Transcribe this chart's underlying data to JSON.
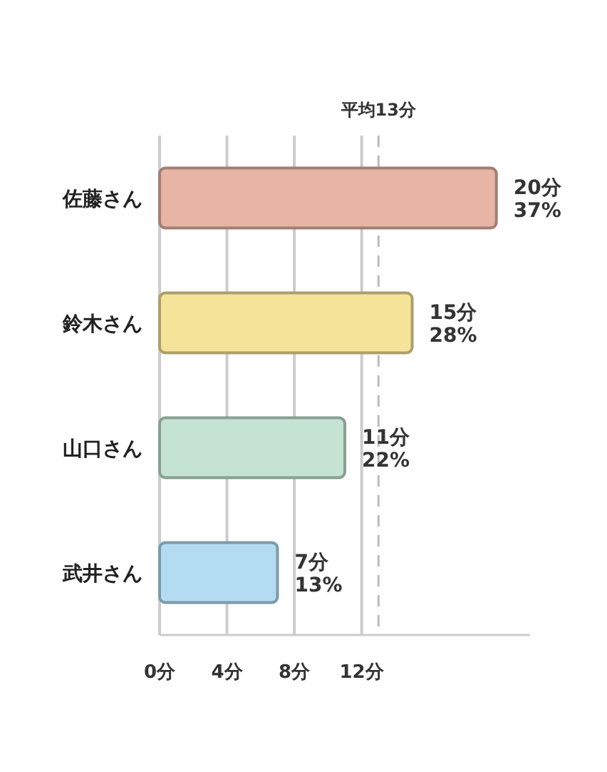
{
  "chart_data": {
    "type": "bar",
    "orientation": "horizontal",
    "categories": [
      "佐藤さん",
      "鈴木さん",
      "山口さん",
      "武井さん"
    ],
    "values": [
      20,
      15,
      11,
      7
    ],
    "colors": [
      "#e8b4a6",
      "#f5e39a",
      "#c4e3d2",
      "#b3dcf2"
    ],
    "value_labels": [
      "20分\n37%",
      "15分\n28%",
      "11分\n22%",
      "7分\n13%"
    ],
    "xlim": [
      0,
      22
    ],
    "xticks": [
      {
        "value": 0,
        "label": "0分"
      },
      {
        "value": 4,
        "label": "4分"
      },
      {
        "value": 8,
        "label": "8分"
      },
      {
        "value": 12,
        "label": "12分"
      }
    ],
    "grid": "x",
    "ref_lines": [
      {
        "axis": "x",
        "value": 13,
        "label": "平均13分",
        "line_style": "dashed",
        "color": "#bbbbbb"
      }
    ]
  }
}
